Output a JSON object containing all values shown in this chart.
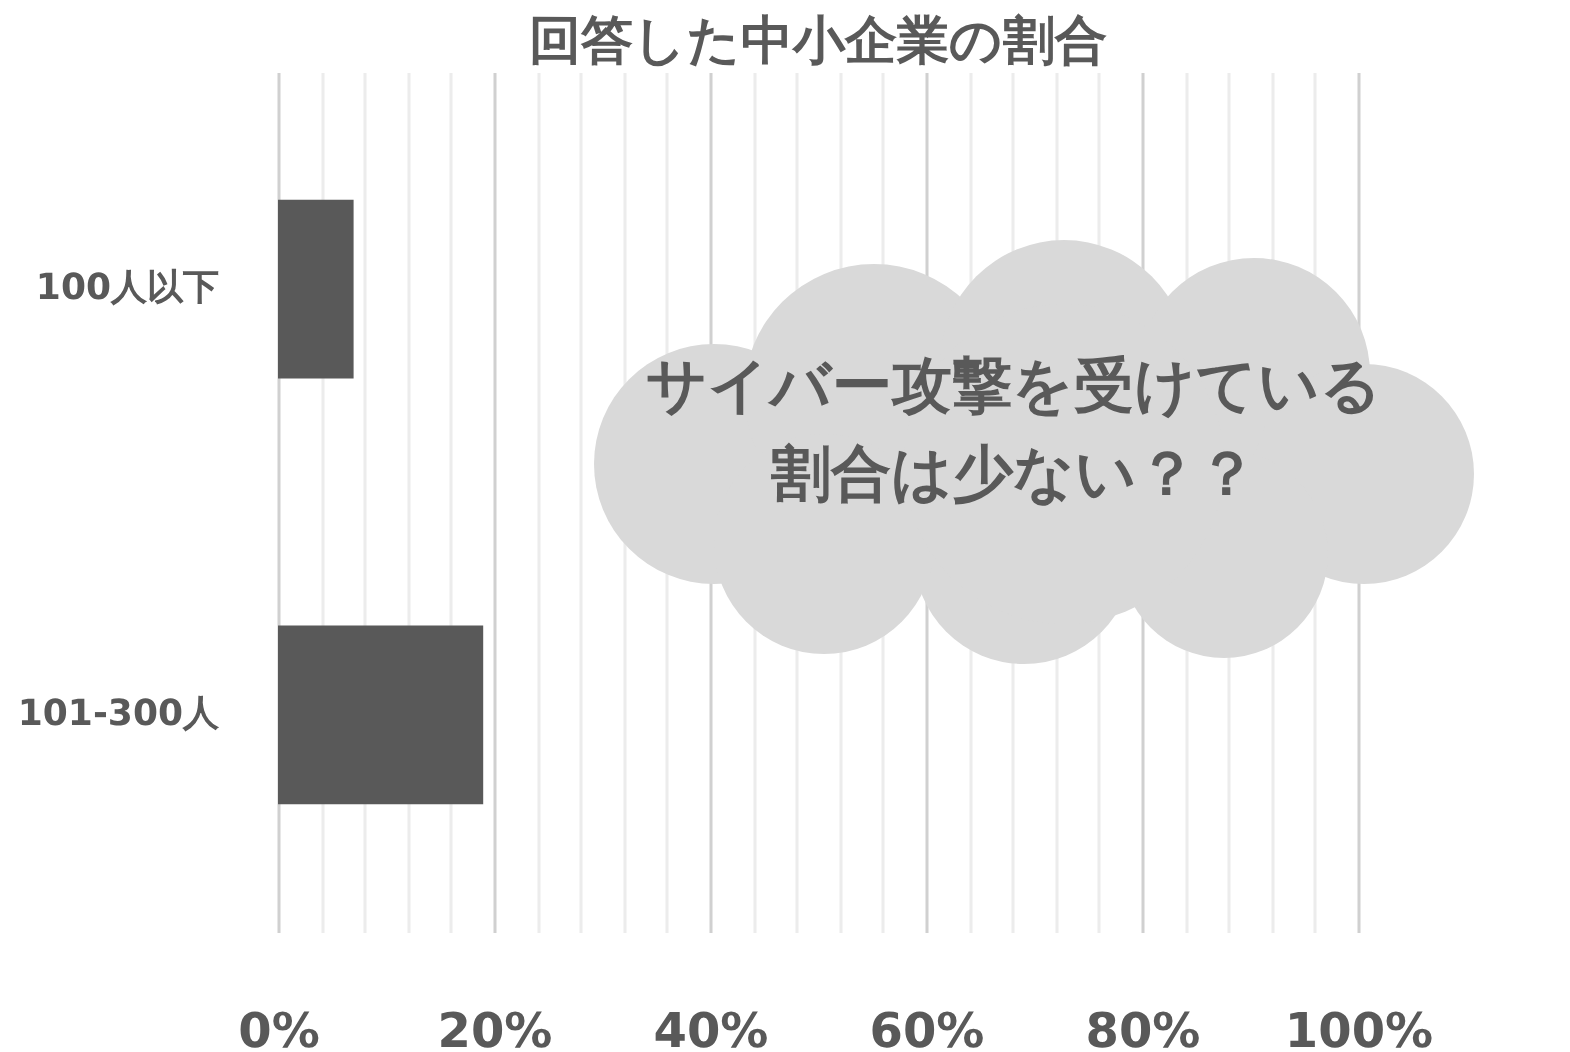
{
  "chart_data": {
    "type": "bar",
    "orientation": "horizontal",
    "title": "回答した中小企業の割合",
    "categories": [
      "100人以下",
      "101-300人"
    ],
    "values": [
      7,
      19
    ],
    "color": "#595959",
    "xlim": [
      0,
      100
    ],
    "xticks": [
      {
        "value": 0,
        "label": "0%"
      },
      {
        "value": 4,
        "label": null
      },
      {
        "value": 8,
        "label": null
      },
      {
        "value": 12,
        "label": null
      },
      {
        "value": 16,
        "label": null
      },
      {
        "value": 20,
        "label": "20%"
      },
      {
        "value": 24,
        "label": null
      },
      {
        "value": 28,
        "label": null
      },
      {
        "value": 32,
        "label": null
      },
      {
        "value": 36,
        "label": null
      },
      {
        "value": 40,
        "label": "40%"
      },
      {
        "value": 44,
        "label": null
      },
      {
        "value": 48,
        "label": null
      },
      {
        "value": 52,
        "label": null
      },
      {
        "value": 56,
        "label": null
      },
      {
        "value": 60,
        "label": "60%"
      },
      {
        "value": 64,
        "label": null
      },
      {
        "value": 68,
        "label": null
      },
      {
        "value": 72,
        "label": null
      },
      {
        "value": 76,
        "label": null
      },
      {
        "value": 80,
        "label": "80%"
      },
      {
        "value": 84,
        "label": null
      },
      {
        "value": 88,
        "label": null
      },
      {
        "value": 92,
        "label": null
      },
      {
        "value": 96,
        "label": null
      },
      {
        "value": 100,
        "label": "100%"
      }
    ],
    "grid": true,
    "annotations": [
      "サイバー攻撃を受けている割合は少ない？？"
    ]
  }
}
